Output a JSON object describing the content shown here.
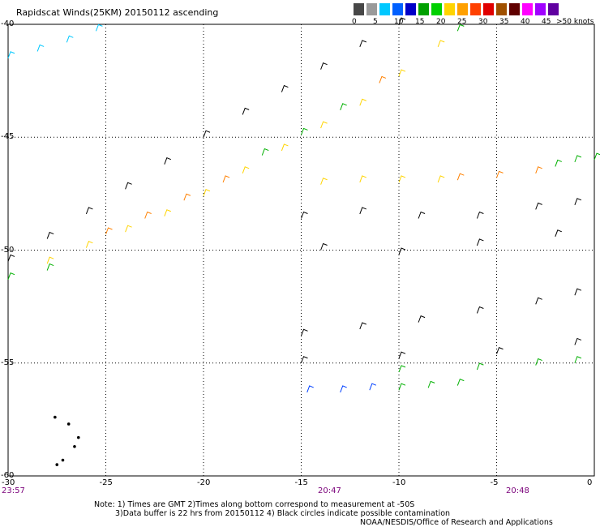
{
  "title": "Rapidscat Winds(25KM) 20150112 ascending",
  "legend": {
    "unit_label": ">50 knots",
    "ticks": [
      "0",
      "5",
      "10",
      "15",
      "20",
      "25",
      "30",
      "35",
      "40",
      "45"
    ],
    "colors": [
      "#474747",
      "#9a9a9a",
      "#00c8ff",
      "#0060ff",
      "#0000c8",
      "#00a000",
      "#00d000",
      "#ffd400",
      "#ffa000",
      "#ff4000",
      "#e00000",
      "#a05000",
      "#600000",
      "#ff00ff",
      "#a000ff",
      "#6000a0"
    ]
  },
  "axes": {
    "lon_ticks": [
      "-30",
      "-25",
      "-20",
      "-15",
      "-10",
      "-5",
      "0"
    ],
    "lat_ticks": [
      "-40",
      "-45",
      "-50",
      "-55",
      "-60"
    ]
  },
  "times": [
    "23:57",
    "20:47",
    "20:48"
  ],
  "notes": {
    "line1": "Note: 1) Times are GMT 2)Times along bottom correspond to measurement at -50S",
    "line2": "3)Data buffer is 22 hrs from 20150112 4) Black circles indicate possible contamination",
    "credit": "NOAA/NESDIS/Office of Research and Applications"
  },
  "chart_data": {
    "type": "scatter",
    "title": "Rapidscat Winds(25KM) 20150112 ascending",
    "xlabel": "",
    "ylabel": "",
    "xlim": [
      -30,
      0
    ],
    "ylim": [
      -60,
      -40
    ],
    "grid": true,
    "series": [
      {
        "key": "swath_a_black",
        "color": "#000000",
        "points": [
          [
            -30,
            -50.5
          ],
          [
            -28,
            -49.5
          ],
          [
            -26,
            -48.4
          ],
          [
            -24,
            -47.3
          ],
          [
            -22,
            -46.2
          ],
          [
            -20,
            -45.0
          ],
          [
            -18,
            -44.0
          ],
          [
            -16,
            -43.0
          ],
          [
            -14,
            -42.0
          ],
          [
            -12,
            -41.0
          ],
          [
            -10,
            -40.0
          ]
        ]
      },
      {
        "key": "swath_a_yellow",
        "color": "#ffd400",
        "points": [
          [
            -28,
            -50.6
          ],
          [
            -26,
            -49.9
          ],
          [
            -24,
            -49.2
          ],
          [
            -22,
            -48.5
          ],
          [
            -20,
            -47.6
          ],
          [
            -18,
            -46.6
          ],
          [
            -16,
            -45.6
          ],
          [
            -14,
            -44.6
          ],
          [
            -12,
            -43.6
          ],
          [
            -10,
            -42.3
          ],
          [
            -8,
            -41.0
          ]
        ]
      },
      {
        "key": "swath_a_orange",
        "color": "#ff8000",
        "points": [
          [
            -25,
            -49.3
          ],
          [
            -23,
            -48.6
          ],
          [
            -21,
            -47.8
          ],
          [
            -19,
            -47.0
          ],
          [
            -11,
            -42.6
          ]
        ]
      },
      {
        "key": "swath_a_green",
        "color": "#00b000",
        "points": [
          [
            -30,
            -51.3
          ],
          [
            -28,
            -50.9
          ],
          [
            -17,
            -45.8
          ],
          [
            -15,
            -44.9
          ],
          [
            -13,
            -43.8
          ],
          [
            -7,
            -40.3
          ]
        ]
      },
      {
        "key": "swath_b_black",
        "color": "#000000",
        "points": [
          [
            -15,
            -48.6
          ],
          [
            -12,
            -48.4
          ],
          [
            -9,
            -48.6
          ],
          [
            -6,
            -48.6
          ],
          [
            -3,
            -48.2
          ],
          [
            -1,
            -48.0
          ],
          [
            -14,
            -50.0
          ],
          [
            -10,
            -50.2
          ],
          [
            -6,
            -49.8
          ],
          [
            -2,
            -49.4
          ]
        ]
      },
      {
        "key": "swath_b_yellow",
        "color": "#ffd400",
        "points": [
          [
            -14,
            -47.1
          ],
          [
            -12,
            -47.0
          ],
          [
            -10,
            -47.0
          ],
          [
            -8,
            -47.0
          ]
        ]
      },
      {
        "key": "swath_b_orange",
        "color": "#ff8000",
        "points": [
          [
            -7,
            -46.9
          ],
          [
            -5,
            -46.8
          ],
          [
            -3,
            -46.6
          ]
        ]
      },
      {
        "key": "swath_b_green",
        "color": "#00b000",
        "points": [
          [
            -2,
            -46.3
          ],
          [
            -1,
            -46.1
          ],
          [
            0,
            -46.0
          ]
        ]
      },
      {
        "key": "swath_c_black",
        "color": "#000000",
        "points": [
          [
            -15,
            -53.8
          ],
          [
            -12,
            -53.5
          ],
          [
            -9,
            -53.2
          ],
          [
            -6,
            -52.8
          ],
          [
            -3,
            -52.4
          ],
          [
            -1,
            -52.0
          ],
          [
            -15,
            -55.0
          ],
          [
            -10,
            -54.8
          ],
          [
            -5,
            -54.6
          ],
          [
            -1,
            -54.2
          ]
        ]
      },
      {
        "key": "swath_c_green",
        "color": "#00b000",
        "points": [
          [
            -10,
            -55.4
          ],
          [
            -6,
            -55.3
          ],
          [
            -3,
            -55.1
          ],
          [
            -1,
            -55.0
          ],
          [
            -10,
            -56.2
          ],
          [
            -8.5,
            -56.1
          ],
          [
            -7,
            -56.0
          ]
        ]
      },
      {
        "key": "swath_c_blue",
        "color": "#0040ff",
        "points": [
          [
            -14.7,
            -56.3
          ],
          [
            -13,
            -56.3
          ],
          [
            -11.5,
            -56.2
          ]
        ]
      },
      {
        "key": "swath_d_cyan",
        "color": "#00c8ff",
        "points": [
          [
            -30,
            -41.5
          ],
          [
            -28.5,
            -41.2
          ],
          [
            -27,
            -40.8
          ],
          [
            -25.5,
            -40.3
          ]
        ]
      },
      {
        "key": "contamination",
        "color": "#000000",
        "points": [
          [
            -27.6,
            -57.4
          ],
          [
            -26.9,
            -57.7
          ],
          [
            -26.4,
            -58.3
          ],
          [
            -26.6,
            -58.7
          ],
          [
            -27.2,
            -59.3
          ],
          [
            -27.5,
            -59.5
          ]
        ]
      }
    ]
  }
}
